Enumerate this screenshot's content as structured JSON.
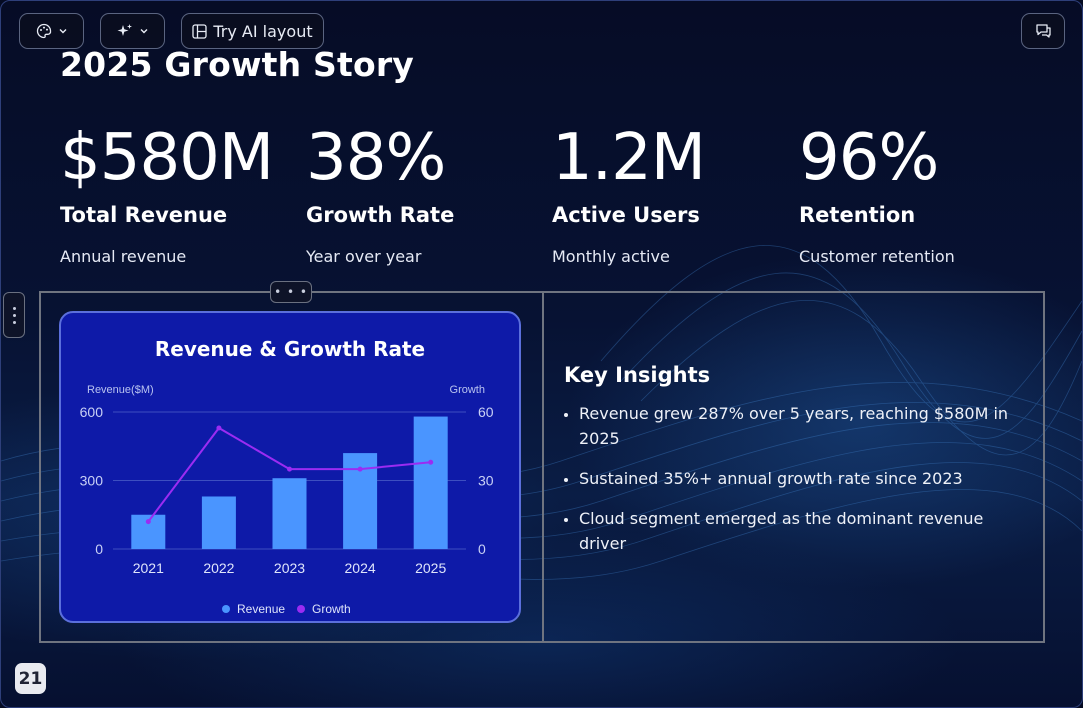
{
  "toolbar": {
    "layout_label": "Try AI layout"
  },
  "slide": {
    "title": "2025 Growth Story",
    "stats": [
      {
        "value": "$580M",
        "label": "Total Revenue",
        "sub": "Annual revenue"
      },
      {
        "value": "38%",
        "label": "Growth Rate",
        "sub": "Year over year"
      },
      {
        "value": "1.2M",
        "label": "Active Users",
        "sub": "Monthly active"
      },
      {
        "value": "96%",
        "label": "Retention",
        "sub": "Customer retention"
      }
    ],
    "handle_label": "• • •",
    "insights": {
      "heading": "Key Insights",
      "items": [
        "Revenue grew 287% over 5 years, reaching $580M in 2025",
        "Sustained 35%+ annual growth rate since 2023",
        "Cloud segment emerged as the dominant revenue driver"
      ]
    },
    "page_number": "21"
  },
  "colors": {
    "card_bg": "#0e1aa8",
    "revenue_bar": "#4a95ff",
    "growth_line": "#9b2cf2"
  },
  "icons": {
    "theme": "palette-icon",
    "ai": "sparkles-icon",
    "layout": "layout-icon",
    "comment": "comment-icon"
  },
  "chart_data": {
    "type": "bar",
    "title": "Revenue & Growth Rate",
    "categories": [
      "2021",
      "2022",
      "2023",
      "2024",
      "2025"
    ],
    "series": [
      {
        "name": "Revenue",
        "type": "bar",
        "axis": "left",
        "values": [
          150,
          230,
          310,
          420,
          580
        ]
      },
      {
        "name": "Growth",
        "type": "line",
        "axis": "right",
        "values": [
          12,
          53,
          35,
          35,
          38
        ]
      }
    ],
    "ylabel": "Revenue($M)",
    "y2label": "Growth",
    "ylim": [
      0,
      600
    ],
    "y2lim": [
      0,
      60
    ],
    "yticks": [
      "0",
      "300",
      "600"
    ],
    "y2ticks": [
      "0",
      "30",
      "60"
    ],
    "grid": true,
    "legend": "bottom-center"
  }
}
